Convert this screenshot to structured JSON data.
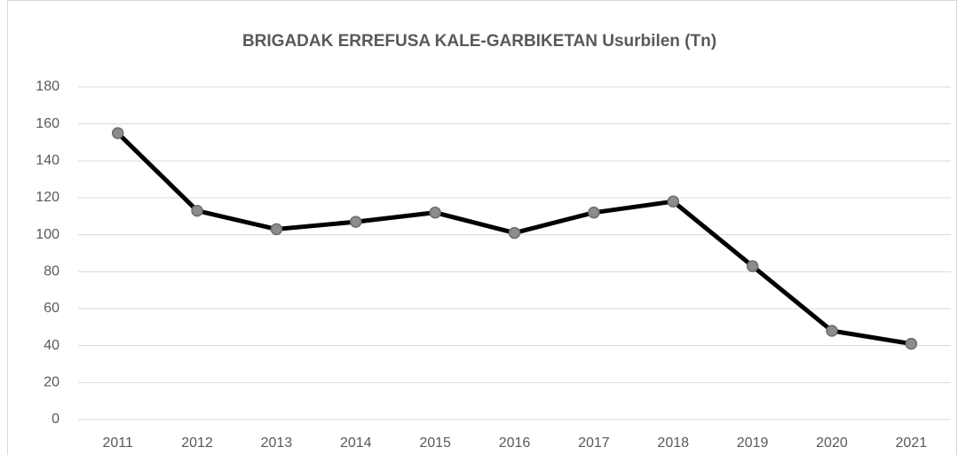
{
  "chart_data": {
    "type": "line",
    "title": "BRIGADAK ERREFUSA KALE-GARBIKETAN Usurbilen (Tn)",
    "categories": [
      "2011",
      "2012",
      "2013",
      "2014",
      "2015",
      "2016",
      "2017",
      "2018",
      "2019",
      "2020",
      "2021"
    ],
    "values": [
      155,
      113,
      103,
      107,
      112,
      101,
      112,
      118,
      83,
      48,
      41
    ],
    "color": "#000000",
    "marker_color": "#8c8c8c",
    "ylim": [
      0,
      180
    ],
    "yticks": [
      0,
      20,
      40,
      60,
      80,
      100,
      120,
      140,
      160,
      180
    ],
    "grid": true
  }
}
